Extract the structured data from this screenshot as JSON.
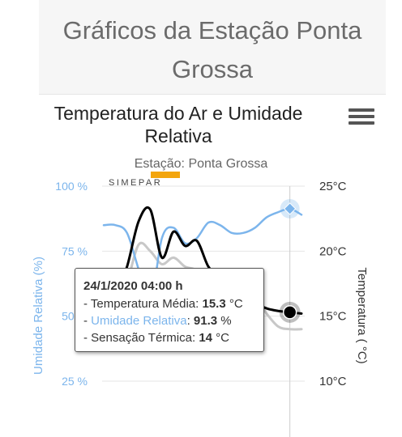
{
  "page_title_line1": "Gráficos da Estação Ponta",
  "page_title_line2": "Grossa",
  "chart_title_line1": "Temperatura do Ar e Umidade",
  "chart_title_line2": "Relativa",
  "chart_subtitle": "Estação: Ponta Grossa",
  "watermark_text": "SIMEPAR",
  "colors": {
    "humidity": "#7cb5ec",
    "temperature": "#000000",
    "sensation": "#c8c8c8",
    "axis_left": "#7cb5ec",
    "accent": "#f3a50d"
  },
  "tooltip": {
    "date": "24/1/2020 04:00 h",
    "rows": [
      {
        "prefix": "- ",
        "label": "Temperatura Média",
        "sep": ": ",
        "value": "15.3",
        "unit": " °C"
      },
      {
        "prefix": "- ",
        "label": "Umidade Relativa",
        "sep": ": ",
        "value": "91.3",
        "unit": " %"
      },
      {
        "prefix": "- ",
        "label": "Sensação Térmica",
        "sep": ": ",
        "value": "14",
        "unit": " °C"
      }
    ]
  },
  "chart_data": {
    "type": "line",
    "title": "Temperatura do Ar e Umidade Relativa",
    "subtitle": "Estação: Ponta Grossa",
    "y_left": {
      "label": "Umidade Relativa (%)",
      "ticks": [
        "100 %",
        "75 %",
        "50 %",
        "25 %"
      ],
      "tick_values": [
        100,
        75,
        50,
        25
      ],
      "range": [
        25,
        100
      ]
    },
    "y_right": {
      "label": "Temperatura ( °C)",
      "ticks": [
        "25°C",
        "20°C",
        "15°C",
        "10°C"
      ],
      "tick_values": [
        25,
        20,
        15,
        10
      ],
      "range": [
        10,
        25
      ]
    },
    "series": [
      {
        "name": "Umidade Relativa",
        "axis": "left",
        "x": [
          0,
          1,
          2,
          3,
          4,
          5,
          6,
          7,
          8,
          9,
          10,
          11,
          12,
          13,
          14,
          15,
          16,
          17
        ],
        "values": [
          85,
          85,
          82,
          68,
          55,
          80,
          84,
          78,
          80,
          86,
          85,
          82,
          82,
          84,
          88,
          90,
          91.3,
          89
        ]
      },
      {
        "name": "Temperatura Média",
        "axis": "right",
        "x": [
          0,
          1,
          2,
          3,
          4,
          5,
          6,
          7,
          8,
          9,
          10,
          11,
          12,
          13,
          14,
          15,
          16,
          17
        ],
        "values": [
          15.5,
          16.5,
          18.8,
          22.3,
          23.2,
          19.5,
          21.5,
          20.4,
          20.8,
          18.8,
          18.0,
          17.2,
          16.5,
          16.0,
          15.6,
          15.4,
          15.3,
          15.2
        ]
      },
      {
        "name": "Sensação Térmica",
        "axis": "right",
        "x": [
          0,
          1,
          2,
          3,
          4,
          5,
          6,
          7,
          8,
          9,
          10,
          11,
          12,
          13,
          14,
          15,
          16,
          17
        ],
        "values": [
          14.0,
          15.0,
          17.5,
          20.5,
          20.0,
          19.0,
          19.5,
          18.8,
          18.5,
          17.3,
          17.0,
          16.8,
          16.7,
          16.5,
          15.2,
          14.2,
          14.0,
          14.0
        ]
      }
    ],
    "highlight_index": 16,
    "grid": true
  }
}
